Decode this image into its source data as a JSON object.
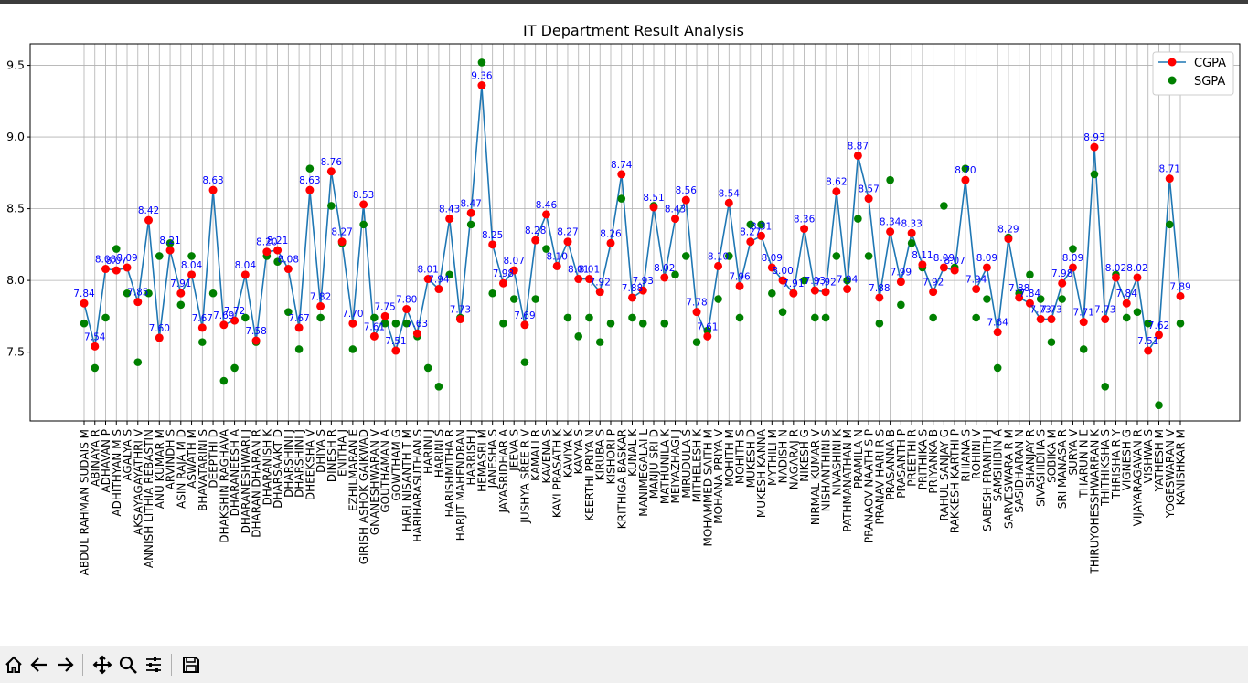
{
  "window": {
    "topbar_color": "#3c3c3c"
  },
  "toolbar": {
    "buttons": [
      {
        "name": "home-icon"
      },
      {
        "name": "back-arrow-icon"
      },
      {
        "name": "forward-arrow-icon"
      },
      {
        "name": "pan-icon"
      },
      {
        "name": "zoom-icon"
      },
      {
        "name": "configure-subplots-icon"
      },
      {
        "name": "save-icon"
      }
    ]
  },
  "chart_data": {
    "type": "line",
    "title": "IT Department Result Analysis",
    "xlabel": "",
    "ylabel": "",
    "ylim": [
      7.02,
      9.65
    ],
    "yticks": [
      7.5,
      8.0,
      8.5,
      9.0,
      9.5
    ],
    "ytick_labels": [
      "7.5",
      "8.0",
      "8.5",
      "9.0",
      "9.5"
    ],
    "grid": true,
    "legend": "top-right",
    "colors": {
      "cgpa_line": "#1f77b4",
      "cgpa_marker": "#ff0000",
      "sgpa_marker": "#008000",
      "label": "#0000ff"
    },
    "categories": [
      "ABDUL RAHMAN SUDAIS M",
      "ABINAYA R",
      "ADHAVAN P",
      "ADHITHYAN M S",
      "AGALYA S",
      "AKSAYAGAYATHRI V",
      "ANNISH LITHIA REBASTIN",
      "ANU KUMAR M",
      "ARVINDH S",
      "ASIN RAJA M D",
      "ASWATH M",
      "BHAVATARINI S",
      "DEEPTHI D",
      "DHAKSHIN RAGHAVA",
      "DHARANEESH A",
      "DHARANESHWARI J",
      "DHARANIDHARAN R",
      "DHARANISH K",
      "DHARSAAKT D",
      "DHARSHINI J",
      "DHARSHINI J",
      "DHEEKSHA V",
      "DHIYA S",
      "DINESH R",
      "ENITHA J",
      "EZHILMARAN E",
      "GIRISH ASHOK GAIKWAD",
      "GNANESHWARAN V",
      "GOUTHAMAN A",
      "GOWTHAM G",
      "HARI NISANTH T M",
      "HARIHARASUTHAN S",
      "HARINI J",
      "HARINI S",
      "HARISHMITHA R",
      "HARJIT MAHENDRAN",
      "HARRISH J",
      "HEMASRI M",
      "JANESHA S",
      "JAYASRIDHAR A",
      "JEEVA S",
      "JUSHYA SREE R V",
      "KAMALI R",
      "KAVENA S",
      "KAVI PRASATH K",
      "KAVIYA K",
      "KAVYA S",
      "KEERTHI PRIYA N",
      "KIRUBA S",
      "KISHORI P",
      "KRITHIGA BASKAR",
      "KUNAL K",
      "MANIMEGALAI L",
      "MANJU SRI D",
      "MATHUNILA K",
      "MEIYAZHAGI J",
      "MIRUDULA S",
      "MITHELESH K",
      "MOHAMMED SAITH M",
      "MOHANA PRIYA V",
      "MOHITH M",
      "MOHITH S",
      "MUKESH D",
      "MUKESH KANNA",
      "MYTHILI M",
      "NADISH N",
      "NAGARAJ R",
      "NIKESH G",
      "NIRMAL KUMAR V",
      "NISHANTHINI S",
      "NIVASHINI K",
      "PATHMANATHAN M",
      "PRAMILA N",
      "PRANAOV NAATH S P",
      "PRANAV HARI R S",
      "PRASANNA B",
      "PRASANTH P",
      "PREETHI R",
      "PRITHIKA S",
      "PRIYANKA B",
      "RAHUL SANJAY G",
      "RAKKESH KARTHI P",
      "RHIANA S",
      "ROHINI V",
      "SABESH PRANITH J",
      "SAMSHIBIN A",
      "SARVESWARA R M",
      "SASIDHARAN N",
      "SHANJAY R",
      "SIVASHIDHA S",
      "SOBIKA M",
      "SRI MANASA R",
      "SURYA V",
      "THARUN N E",
      "THIRUYOHESSHWARRAN K",
      "THITHIKSHA S",
      "THRISHA R Y",
      "VIGNESH G",
      "VIJAYARAGAVAN R",
      "VISHWA S",
      "YATHESH M",
      "YOGESWARAN V",
      "KANISHKAR M"
    ],
    "series": [
      {
        "name": "CGPA",
        "kind": "line",
        "values": [
          7.84,
          7.54,
          8.08,
          8.07,
          8.09,
          7.85,
          8.42,
          7.6,
          8.21,
          7.91,
          8.04,
          7.67,
          8.63,
          7.69,
          7.72,
          8.04,
          7.58,
          8.2,
          8.21,
          8.08,
          7.67,
          8.63,
          7.82,
          8.76,
          8.27,
          7.7,
          8.53,
          7.61,
          7.75,
          7.51,
          7.8,
          7.63,
          8.01,
          7.94,
          8.43,
          7.73,
          8.47,
          9.36,
          8.25,
          7.98,
          8.07,
          7.69,
          8.28,
          8.46,
          8.1,
          8.27,
          8.01,
          8.01,
          7.92,
          8.26,
          8.74,
          7.88,
          7.93,
          8.51,
          8.02,
          8.43,
          8.56,
          7.78,
          7.61,
          8.1,
          8.54,
          7.96,
          8.27,
          8.31,
          8.09,
          8.0,
          7.91,
          8.36,
          7.93,
          7.92,
          8.62,
          7.94,
          8.87,
          8.57,
          7.88,
          8.34,
          7.99,
          8.33,
          8.11,
          7.92,
          8.09,
          8.07,
          8.7,
          7.94,
          8.09,
          7.64,
          8.29,
          7.88,
          7.84,
          7.73,
          7.73,
          7.98,
          8.09,
          7.71,
          8.93,
          7.73,
          8.02,
          7.84,
          8.02,
          7.51,
          7.62,
          8.71,
          7.89
        ]
      },
      {
        "name": "SGPA",
        "kind": "scatter",
        "values": [
          7.7,
          7.39,
          7.74,
          8.22,
          7.91,
          7.43,
          7.91,
          8.17,
          8.26,
          7.83,
          8.17,
          7.57,
          7.91,
          7.3,
          7.39,
          7.74,
          7.57,
          8.17,
          8.13,
          7.78,
          7.52,
          8.78,
          7.74,
          8.52,
          8.26,
          7.52,
          8.39,
          7.74,
          7.7,
          7.7,
          7.7,
          7.61,
          7.39,
          7.26,
          8.04,
          7.74,
          8.39,
          9.52,
          7.91,
          7.7,
          7.87,
          7.43,
          7.87,
          8.22,
          8.1,
          7.74,
          7.61,
          7.74,
          7.57,
          7.7,
          8.57,
          7.74,
          7.7,
          8.52,
          7.7,
          8.04,
          8.17,
          7.57,
          7.65,
          7.87,
          8.17,
          7.74,
          8.39,
          8.39,
          7.91,
          7.78,
          7.91,
          8.0,
          7.74,
          7.74,
          8.17,
          8.0,
          8.43,
          8.17,
          7.7,
          8.7,
          7.83,
          8.26,
          8.09,
          7.74,
          8.52,
          8.09,
          8.78,
          7.74,
          7.87,
          7.39,
          8.3,
          7.91,
          8.04,
          7.87,
          7.57,
          7.87,
          8.22,
          7.52,
          8.74,
          7.26,
          8.04,
          7.74,
          7.78,
          7.7,
          7.13,
          8.39,
          7.7
        ]
      }
    ]
  }
}
